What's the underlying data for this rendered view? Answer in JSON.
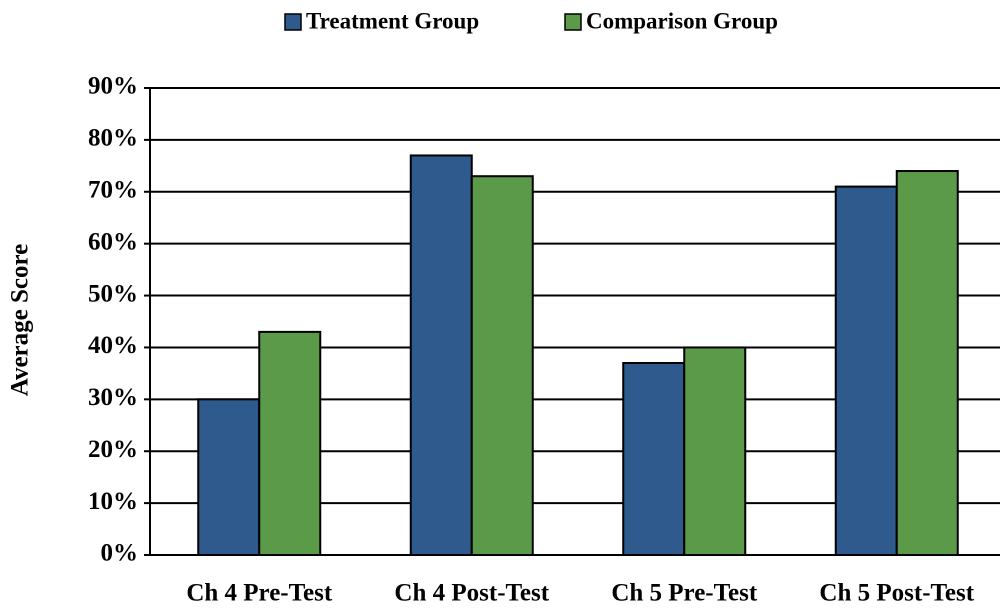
{
  "chart_data": {
    "type": "bar",
    "y_label": "Average Score",
    "categories": [
      "Ch 4 Pre-Test",
      "Ch 4 Post-Test",
      "Ch 5 Pre-Test",
      "Ch 5 Post-Test"
    ],
    "series": [
      {
        "name": "Treatment Group",
        "color": "#2e5a8e",
        "values": [
          30,
          77,
          37,
          71
        ]
      },
      {
        "name": "Comparison Group",
        "color": "#5b9a48",
        "values": [
          43,
          73,
          40,
          74
        ]
      }
    ],
    "ylim": [
      0,
      90
    ],
    "yticks": [
      {
        "value": 0,
        "label": "0%"
      },
      {
        "value": 10,
        "label": "10%"
      },
      {
        "value": 20,
        "label": "20%"
      },
      {
        "value": 30,
        "label": "30%"
      },
      {
        "value": 40,
        "label": "40%"
      },
      {
        "value": 50,
        "label": "50%"
      },
      {
        "value": 60,
        "label": "60%"
      },
      {
        "value": 70,
        "label": "70%"
      },
      {
        "value": 80,
        "label": "80%"
      },
      {
        "value": 90,
        "label": "90%"
      }
    ],
    "grid": true,
    "legend": "top"
  }
}
